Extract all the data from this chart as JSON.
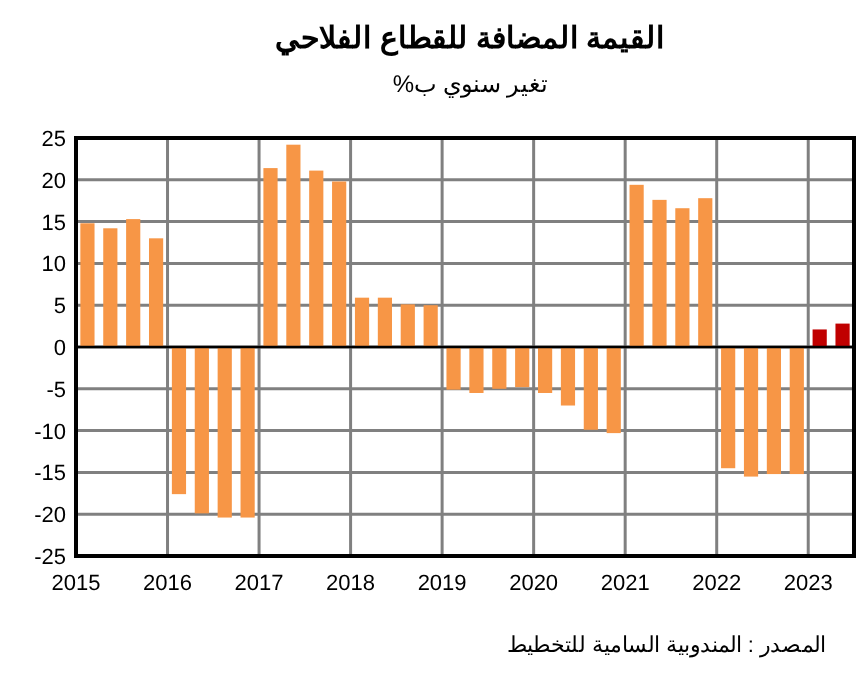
{
  "chart_data": {
    "type": "bar",
    "title": "القيمة المضافة للقطاع الفلاحي",
    "subtitle": "تغير سنوي ب%",
    "annotations": [
      "المصدر : المندوبية السامية للتخطيط"
    ],
    "x": [
      2015.125,
      2015.375,
      2015.625,
      2015.875,
      2016.125,
      2016.375,
      2016.625,
      2016.875,
      2017.125,
      2017.375,
      2017.625,
      2017.875,
      2018.125,
      2018.375,
      2018.625,
      2018.875,
      2019.125,
      2019.375,
      2019.625,
      2019.875,
      2020.125,
      2020.375,
      2020.625,
      2020.875,
      2021.125,
      2021.375,
      2021.625,
      2021.875,
      2022.125,
      2022.375,
      2022.625,
      2022.875,
      2023.125,
      2023.375
    ],
    "values": [
      14.8,
      14.2,
      15.3,
      13.0,
      -17.6,
      -19.9,
      -20.4,
      -20.4,
      21.4,
      24.2,
      21.1,
      19.8,
      5.9,
      5.9,
      5.1,
      5.0,
      -5.1,
      -5.5,
      -5.0,
      -4.8,
      -5.5,
      -7.0,
      -9.9,
      -10.3,
      19.4,
      17.6,
      16.6,
      17.8,
      -14.5,
      -15.5,
      -15.2,
      -15.2,
      2.1,
      2.8
    ],
    "colors": [
      "#f79646",
      "#f79646",
      "#f79646",
      "#f79646",
      "#f79646",
      "#f79646",
      "#f79646",
      "#f79646",
      "#f79646",
      "#f79646",
      "#f79646",
      "#f79646",
      "#f79646",
      "#f79646",
      "#f79646",
      "#f79646",
      "#f79646",
      "#f79646",
      "#f79646",
      "#f79646",
      "#f79646",
      "#f79646",
      "#f79646",
      "#f79646",
      "#f79646",
      "#f79646",
      "#f79646",
      "#f79646",
      "#f79646",
      "#f79646",
      "#f79646",
      "#f79646",
      "#c00000",
      "#c00000"
    ],
    "xlim": [
      2015,
      2023.5
    ],
    "xticks": [
      2015,
      2016,
      2017,
      2018,
      2019,
      2020,
      2021,
      2022,
      2023
    ],
    "ylim": [
      -25,
      25
    ],
    "yticks": [
      -25,
      -20,
      -15,
      -10,
      -5,
      0,
      5,
      10,
      15,
      20,
      25
    ],
    "grid": true
  }
}
